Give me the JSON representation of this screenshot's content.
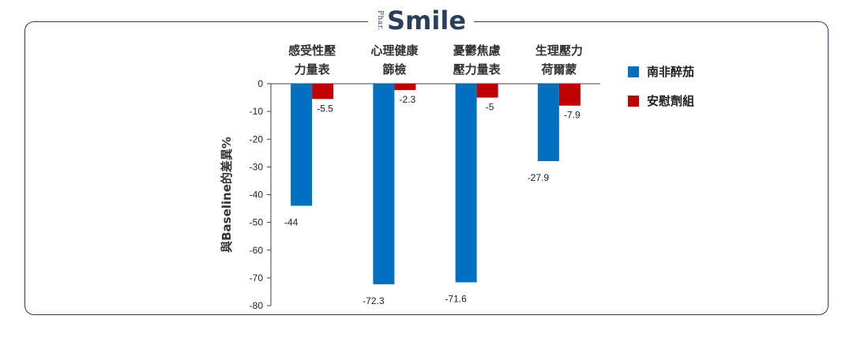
{
  "brand": {
    "prefix": "Phar.",
    "name": "Smile"
  },
  "chart_data": {
    "type": "bar",
    "categories": [
      "感受性壓力量表",
      "心理健康篩檢",
      "憂鬱焦慮壓力量表",
      "生理壓力荷爾蒙"
    ],
    "category_lines": [
      [
        "感受性壓",
        "力量表"
      ],
      [
        "心理健康",
        "篩檢"
      ],
      [
        "憂鬱焦慮",
        "壓力量表"
      ],
      [
        "生理壓力",
        "荷爾蒙"
      ]
    ],
    "series": [
      {
        "name": "南非醉茄",
        "color": "#0070c0",
        "values": [
          -44,
          -72.3,
          -71.6,
          -27.9
        ],
        "labels": [
          "-44",
          "-72.3",
          "-71.6",
          "-27.9"
        ]
      },
      {
        "name": "安慰劑組",
        "color": "#c00000",
        "values": [
          -5.5,
          -2.3,
          -5,
          -7.9
        ],
        "labels": [
          "-5.5",
          "-2.3",
          "-5",
          "-7.9"
        ]
      }
    ],
    "ylabel": "與Baseline的差異%",
    "ylim": [
      -80,
      0
    ],
    "yticks": [
      0,
      -10,
      -20,
      -30,
      -40,
      -50,
      -60,
      -70,
      -80
    ],
    "grid": false,
    "legend": "right"
  }
}
